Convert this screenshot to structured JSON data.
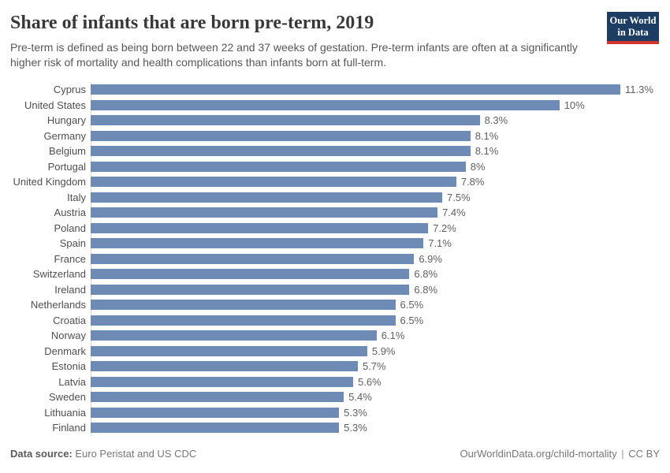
{
  "header": {
    "title": "Share of infants that are born pre-term, 2019",
    "subtitle": "Pre-term is defined as being born between 22 and 37 weeks of gestation. Pre-term infants are often at a significantly higher risk of mortality and health complications than infants born at full-term.",
    "logo": {
      "line1": "Our World",
      "line2": "in Data",
      "bg_color": "#1d3d63",
      "accent_color": "#d1342f"
    }
  },
  "chart_data": {
    "type": "bar",
    "orientation": "horizontal",
    "title": "Share of infants that are born pre-term, 2019",
    "categories": [
      "Cyprus",
      "United States",
      "Hungary",
      "Germany",
      "Belgium",
      "Portugal",
      "United Kingdom",
      "Italy",
      "Austria",
      "Poland",
      "Spain",
      "France",
      "Switzerland",
      "Ireland",
      "Netherlands",
      "Croatia",
      "Norway",
      "Denmark",
      "Estonia",
      "Latvia",
      "Sweden",
      "Lithuania",
      "Finland"
    ],
    "values": [
      11.3,
      10,
      8.3,
      8.1,
      8.1,
      8,
      7.8,
      7.5,
      7.4,
      7.2,
      7.1,
      6.9,
      6.8,
      6.8,
      6.5,
      6.5,
      6.1,
      5.9,
      5.7,
      5.6,
      5.4,
      5.3,
      5.3
    ],
    "value_labels": [
      "11.3%",
      "10%",
      "8.3%",
      "8.1%",
      "8.1%",
      "8%",
      "7.8%",
      "7.5%",
      "7.4%",
      "7.2%",
      "7.1%",
      "6.9%",
      "6.8%",
      "6.8%",
      "6.5%",
      "6.5%",
      "6.1%",
      "5.9%",
      "5.7%",
      "5.6%",
      "5.4%",
      "5.3%",
      "5.3%"
    ],
    "unit": "%",
    "xlim": [
      0,
      11.3
    ],
    "grid": false,
    "legend": "none",
    "bar_color": "#6d8bb5"
  },
  "footer": {
    "source_label": "Data source:",
    "source_text": " Euro Peristat and US CDC",
    "url_text": "OurWorldinData.org/child-mortality",
    "separator": "|",
    "license_text": "CC BY"
  }
}
